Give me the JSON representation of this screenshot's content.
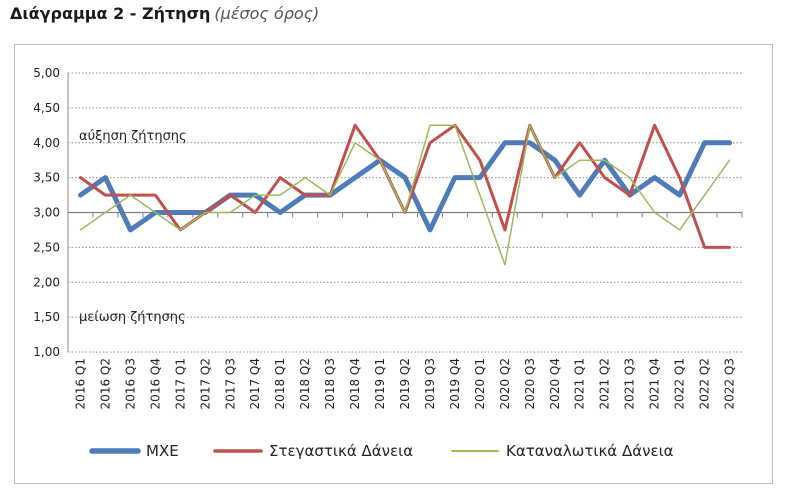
{
  "title": {
    "main": "Διάγραμμα 2 - Ζήτηση",
    "sub": "(μέσος όρος)"
  },
  "colors": {
    "mxe": "#4f7cb9",
    "housing": "#c0504d",
    "consumer": "#9bbb59"
  },
  "chart_data": {
    "type": "line",
    "ylim": [
      1.0,
      5.0
    ],
    "yticks": [
      "1,00",
      "1,50",
      "2,00",
      "2,50",
      "3,00",
      "3,50",
      "4,00",
      "4,50",
      "5,00"
    ],
    "ytick_values": [
      1.0,
      1.5,
      2.0,
      2.5,
      3.0,
      3.5,
      4.0,
      4.5,
      5.0
    ],
    "grid": true,
    "legend_position": "bottom",
    "annotations": [
      {
        "text": "αύξηση ζήτησης",
        "y": 4.1
      },
      {
        "text": "μείωση ζήτησης",
        "y": 1.5
      }
    ],
    "categories": [
      "2016 Q1",
      "2016 Q2",
      "2016 Q3",
      "2016 Q4",
      "2017 Q1",
      "2017 Q2",
      "2017 Q3",
      "2017 Q4",
      "2018 Q1",
      "2018 Q2",
      "2018 Q3",
      "2018 Q4",
      "2019 Q1",
      "2019 Q2",
      "2019 Q3",
      "2019 Q4",
      "2020 Q1",
      "2020 Q2",
      "2020 Q3",
      "2020 Q4",
      "2021 Q1",
      "2021 Q2",
      "2021 Q3",
      "2021 Q4",
      "2022 Q1",
      "2022 Q2",
      "2022 Q3"
    ],
    "series": [
      {
        "name": "ΜΧΕ",
        "color": "#4f7cb9",
        "width": 5,
        "values": [
          3.25,
          3.5,
          2.75,
          3.0,
          3.0,
          3.0,
          3.25,
          3.25,
          3.0,
          3.25,
          3.25,
          3.5,
          3.75,
          3.5,
          2.75,
          3.5,
          3.5,
          4.0,
          4.0,
          3.75,
          3.25,
          3.75,
          3.25,
          3.5,
          3.25,
          4.0,
          4.0
        ]
      },
      {
        "name": "Στεγαστικά Δάνεια",
        "color": "#c0504d",
        "width": 3,
        "values": [
          3.5,
          3.25,
          3.25,
          3.25,
          2.75,
          3.0,
          3.25,
          3.0,
          3.5,
          3.25,
          3.25,
          4.25,
          3.75,
          3.0,
          4.0,
          4.25,
          3.75,
          2.75,
          4.25,
          3.5,
          4.0,
          3.5,
          3.25,
          4.25,
          3.5,
          2.5,
          2.5
        ]
      },
      {
        "name": "Καταναλωτικά Δάνεια",
        "color": "#9bbb59",
        "width": 1.5,
        "values": [
          2.75,
          3.0,
          3.25,
          3.0,
          2.75,
          3.0,
          3.0,
          3.25,
          3.25,
          3.5,
          3.25,
          4.0,
          3.75,
          3.0,
          4.25,
          4.25,
          3.25,
          2.25,
          4.25,
          3.5,
          3.75,
          3.75,
          3.5,
          3.0,
          2.75,
          3.25,
          3.75
        ]
      }
    ]
  }
}
